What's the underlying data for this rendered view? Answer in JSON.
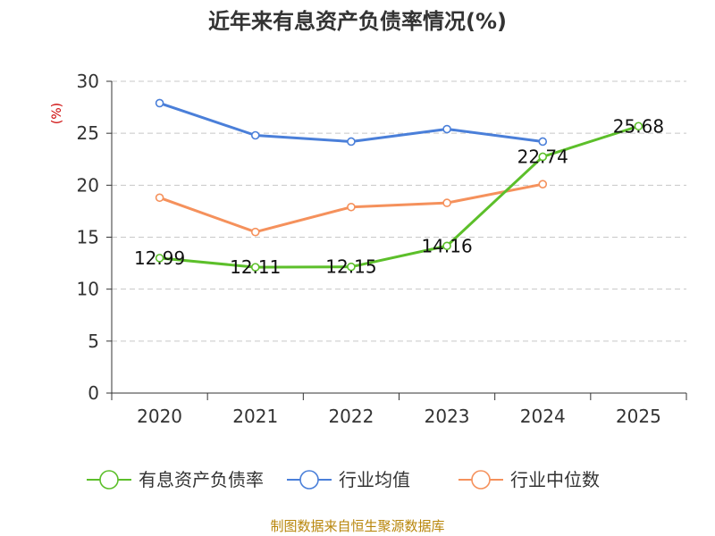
{
  "chart_data": {
    "type": "line",
    "title": "近年来有息资产负债率情况(%)",
    "ylabel": "(%)",
    "xlabel": "",
    "categories": [
      "2020",
      "2021",
      "2022",
      "2023",
      "2024",
      "2025"
    ],
    "ylim": [
      0,
      30
    ],
    "yticks": [
      "0",
      "5",
      "10",
      "15",
      "20",
      "25",
      "30"
    ],
    "grid": true,
    "legend_position": "bottom",
    "series": [
      {
        "name": "有息资产负债率",
        "color": "#5cbf2a",
        "values": [
          12.99,
          12.11,
          12.15,
          14.16,
          22.74,
          25.68
        ],
        "labels": [
          "12.99",
          "12.11",
          "12.15",
          "14.16",
          "22.74",
          "25.68"
        ]
      },
      {
        "name": "行业均值",
        "color": "#4a7fd9",
        "values": [
          27.9,
          24.8,
          24.2,
          25.4,
          24.2,
          null
        ]
      },
      {
        "name": "行业中位数",
        "color": "#f5915c",
        "values": [
          18.8,
          15.5,
          17.9,
          18.3,
          20.1,
          null
        ]
      }
    ],
    "source": "制图数据来自恒生聚源数据库"
  }
}
